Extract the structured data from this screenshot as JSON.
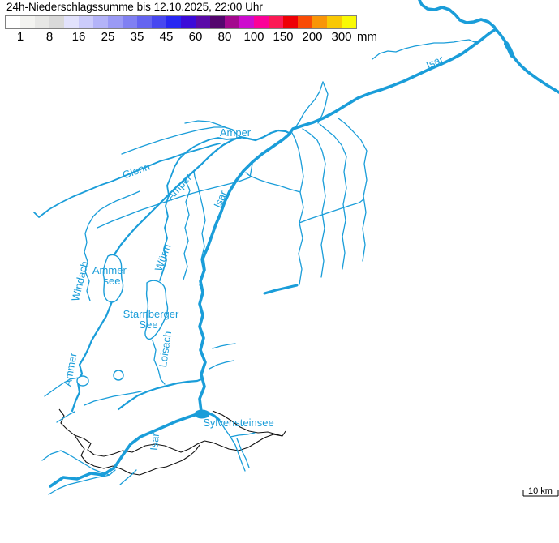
{
  "map": {
    "labels": {
      "isar_top": "Isar",
      "amper_upper": "Amper",
      "glonn": "Glonn",
      "amper_mid": "Amper",
      "isar_mid": "Isar",
      "wurm": "Würm",
      "windach": "Windach",
      "ammersee_line1": "Ammer-",
      "ammersee_line2": "see",
      "starnberger_line1": "Starnberger",
      "starnberger_line2": "See",
      "loisach": "Loisach",
      "ammer": "Ammer",
      "sylvensteinsee": "Sylvensteinsee",
      "isar_south": "Isar"
    },
    "scale_bar": {
      "label": "10 km"
    },
    "colors": {
      "river": "#1A9DD9",
      "boundary": "#111111"
    }
  },
  "legend": {
    "title": "24h-Niederschlagssumme bis 12.10.2025, 22:00 Uhr",
    "unit": "mm",
    "tick_labels": [
      "1",
      "8",
      "16",
      "25",
      "35",
      "45",
      "60",
      "80",
      "100",
      "150",
      "200",
      "300"
    ],
    "colors": [
      "#ffffff",
      "#f3f3f0",
      "#e7e7e5",
      "#d9d9d9",
      "#e2e2fc",
      "#cbcbfa",
      "#b3b3f8",
      "#9a9af5",
      "#8080f2",
      "#6464f0",
      "#4747f0",
      "#2727f2",
      "#3b0bd8",
      "#5a0aa8",
      "#54066e",
      "#a3088e",
      "#cd0cce",
      "#fb0198",
      "#fb1a55",
      "#ee0006",
      "#f94b05",
      "#f99507",
      "#f9c804",
      "#f9f905"
    ]
  }
}
